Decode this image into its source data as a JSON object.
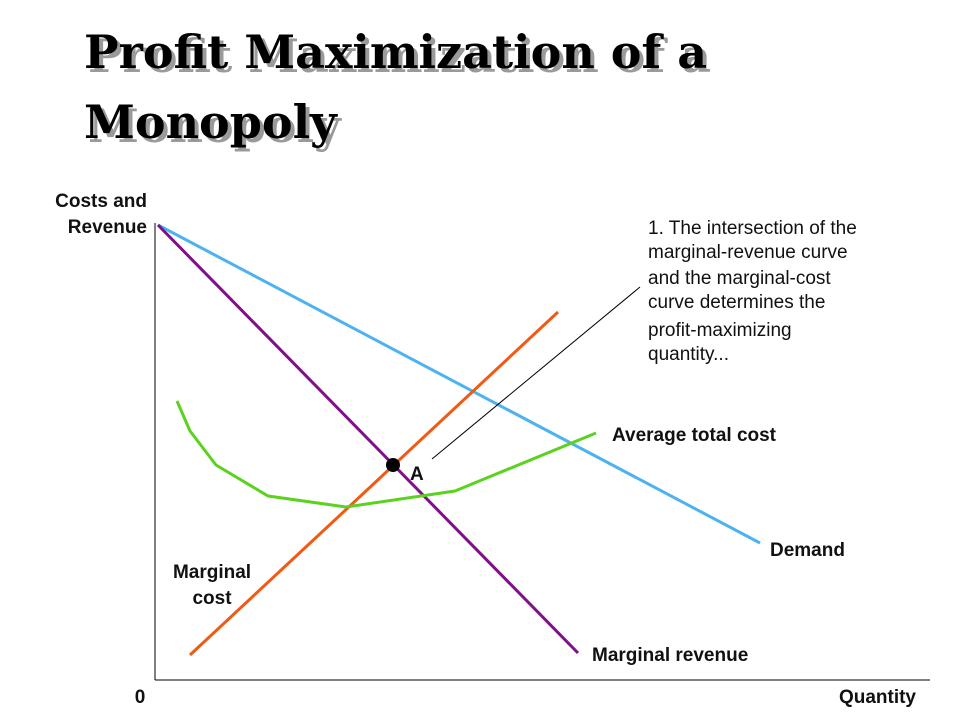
{
  "title": {
    "line1": "Profit Maximization of a",
    "line2": "Monopoly"
  },
  "axes": {
    "y_label_line1": "Costs and",
    "y_label_line2": "Revenue",
    "x_label": "Quantity",
    "origin_label": "0"
  },
  "curves": {
    "demand": {
      "label": "Demand",
      "color": "#4db3f0"
    },
    "marginal_revenue": {
      "label": "Marginal revenue",
      "color": "#800f8a"
    },
    "marginal_cost": {
      "label_line1": "Marginal",
      "label_line2": "cost",
      "color": "#f05a14"
    },
    "average_total_cost": {
      "label": "Average total cost",
      "color": "#5ad21e"
    }
  },
  "point": {
    "label": "A"
  },
  "annotation": {
    "lines": [
      "1. The intersection of the",
      "marginal-revenue curve",
      "and the marginal-cost",
      "curve determines the",
      "profit-maximizing",
      "quantity..."
    ]
  }
}
